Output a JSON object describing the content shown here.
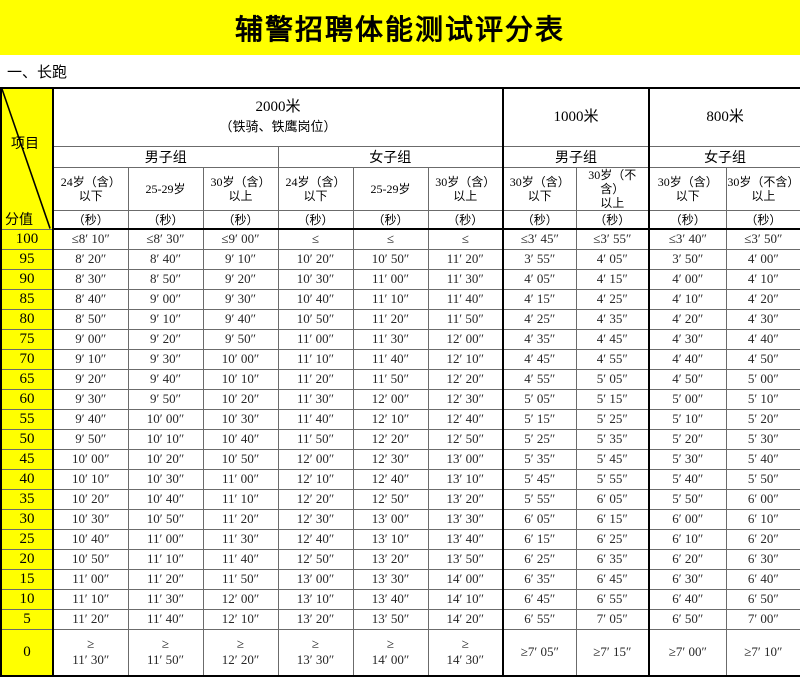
{
  "page": {
    "title": "辅警招聘体能测试评分表",
    "section": "一、长跑"
  },
  "corner": {
    "project": "项目",
    "score": "分值"
  },
  "header": {
    "events": [
      {
        "name": "2000米",
        "sub": "（铁骑、铁鹰岗位）"
      },
      {
        "name": "1000米",
        "sub": ""
      },
      {
        "name": "800米",
        "sub": ""
      }
    ],
    "groups": [
      "男子组",
      "女子组",
      "男子组",
      "女子组"
    ],
    "ages": [
      "24岁（含）\n以下",
      "25-29岁",
      "30岁（含）\n以上",
      "24岁（含）\n以下",
      "25-29岁",
      "30岁（含）\n以上",
      "30岁（含）\n以下",
      "30岁（不含）\n以上",
      "30岁（含）\n以下",
      "30岁（不含）\n以上"
    ],
    "unit": "（秒）"
  },
  "rows": [
    {
      "score": "100",
      "cells": [
        "≤8′ 10″",
        "≤8′ 30″",
        "≤9′ 00″",
        "≤",
        "≤",
        "≤",
        "≤3′ 45″",
        "≤3′ 55″",
        "≤3′ 40″",
        "≤3′ 50″"
      ]
    },
    {
      "score": "95",
      "cells": [
        "8′ 20″",
        "8′ 40″",
        "9′ 10″",
        "10′ 20″",
        "10′ 50″",
        "11′ 20″",
        "3′ 55″",
        "4′ 05″",
        "3′ 50″",
        "4′ 00″"
      ]
    },
    {
      "score": "90",
      "cells": [
        "8′ 30″",
        "8′ 50″",
        "9′ 20″",
        "10′ 30″",
        "11′ 00″",
        "11′ 30″",
        "4′ 05″",
        "4′ 15″",
        "4′ 00″",
        "4′ 10″"
      ]
    },
    {
      "score": "85",
      "cells": [
        "8′ 40″",
        "9′ 00″",
        "9′ 30″",
        "10′ 40″",
        "11′ 10″",
        "11′ 40″",
        "4′ 15″",
        "4′ 25″",
        "4′ 10″",
        "4′ 20″"
      ]
    },
    {
      "score": "80",
      "cells": [
        "8′ 50″",
        "9′ 10″",
        "9′ 40″",
        "10′ 50″",
        "11′ 20″",
        "11′ 50″",
        "4′ 25″",
        "4′ 35″",
        "4′ 20″",
        "4′ 30″"
      ]
    },
    {
      "score": "75",
      "cells": [
        "9′ 00″",
        "9′ 20″",
        "9′ 50″",
        "11′ 00″",
        "11′ 30″",
        "12′ 00″",
        "4′ 35″",
        "4′ 45″",
        "4′ 30″",
        "4′ 40″"
      ]
    },
    {
      "score": "70",
      "cells": [
        "9′ 10″",
        "9′ 30″",
        "10′ 00″",
        "11′ 10″",
        "11′ 40″",
        "12′ 10″",
        "4′ 45″",
        "4′ 55″",
        "4′ 40″",
        "4′ 50″"
      ]
    },
    {
      "score": "65",
      "cells": [
        "9′ 20″",
        "9′ 40″",
        "10′ 10″",
        "11′ 20″",
        "11′ 50″",
        "12′ 20″",
        "4′ 55″",
        "5′ 05″",
        "4′ 50″",
        "5′ 00″"
      ]
    },
    {
      "score": "60",
      "cells": [
        "9′ 30″",
        "9′ 50″",
        "10′ 20″",
        "11′ 30″",
        "12′ 00″",
        "12′ 30″",
        "5′ 05″",
        "5′ 15″",
        "5′ 00″",
        "5′ 10″"
      ]
    },
    {
      "score": "55",
      "cells": [
        "9′ 40″",
        "10′ 00″",
        "10′ 30″",
        "11′ 40″",
        "12′ 10″",
        "12′ 40″",
        "5′ 15″",
        "5′ 25″",
        "5′ 10″",
        "5′ 20″"
      ]
    },
    {
      "score": "50",
      "cells": [
        "9′ 50″",
        "10′ 10″",
        "10′ 40″",
        "11′ 50″",
        "12′ 20″",
        "12′ 50″",
        "5′ 25″",
        "5′ 35″",
        "5′ 20″",
        "5′ 30″"
      ]
    },
    {
      "score": "45",
      "cells": [
        "10′ 00″",
        "10′ 20″",
        "10′ 50″",
        "12′ 00″",
        "12′ 30″",
        "13′ 00″",
        "5′ 35″",
        "5′ 45″",
        "5′ 30″",
        "5′ 40″"
      ]
    },
    {
      "score": "40",
      "cells": [
        "10′ 10″",
        "10′ 30″",
        "11′ 00″",
        "12′ 10″",
        "12′ 40″",
        "13′ 10″",
        "5′ 45″",
        "5′ 55″",
        "5′ 40″",
        "5′ 50″"
      ]
    },
    {
      "score": "35",
      "cells": [
        "10′ 20″",
        "10′ 40″",
        "11′ 10″",
        "12′ 20″",
        "12′ 50″",
        "13′ 20″",
        "5′ 55″",
        "6′ 05″",
        "5′ 50″",
        "6′ 00″"
      ]
    },
    {
      "score": "30",
      "cells": [
        "10′ 30″",
        "10′ 50″",
        "11′ 20″",
        "12′ 30″",
        "13′ 00″",
        "13′ 30″",
        "6′ 05″",
        "6′ 15″",
        "6′ 00″",
        "6′ 10″"
      ]
    },
    {
      "score": "25",
      "cells": [
        "10′ 40″",
        "11′ 00″",
        "11′ 30″",
        "12′ 40″",
        "13′ 10″",
        "13′ 40″",
        "6′ 15″",
        "6′ 25″",
        "6′ 10″",
        "6′ 20″"
      ]
    },
    {
      "score": "20",
      "cells": [
        "10′ 50″",
        "11′ 10″",
        "11′ 40″",
        "12′ 50″",
        "13′ 20″",
        "13′ 50″",
        "6′ 25″",
        "6′ 35″",
        "6′ 20″",
        "6′ 30″"
      ]
    },
    {
      "score": "15",
      "cells": [
        "11′ 00″",
        "11′ 20″",
        "11′ 50″",
        "13′ 00″",
        "13′ 30″",
        "14′ 00″",
        "6′ 35″",
        "6′ 45″",
        "6′ 30″",
        "6′ 40″"
      ]
    },
    {
      "score": "10",
      "cells": [
        "11′ 10″",
        "11′ 30″",
        "12′ 00″",
        "13′ 10″",
        "13′ 40″",
        "14′ 10″",
        "6′ 45″",
        "6′ 55″",
        "6′ 40″",
        "6′ 50″"
      ]
    },
    {
      "score": "5",
      "cells": [
        "11′ 20″",
        "11′ 40″",
        "12′ 10″",
        "13′ 20″",
        "13′ 50″",
        "14′ 20″",
        "6′ 55″",
        "7′ 05″",
        "6′ 50″",
        "7′ 00″"
      ]
    },
    {
      "score": "0",
      "cells": [
        "≥\n11′ 30″",
        "≥\n11′ 50″",
        "≥\n12′ 20″",
        "≥\n13′ 30″",
        "≥\n14′ 00″",
        "≥\n14′ 30″",
        "≥7′ 05″",
        "≥7′ 15″",
        "≥7′ 00″",
        "≥7′ 10″"
      ]
    }
  ]
}
